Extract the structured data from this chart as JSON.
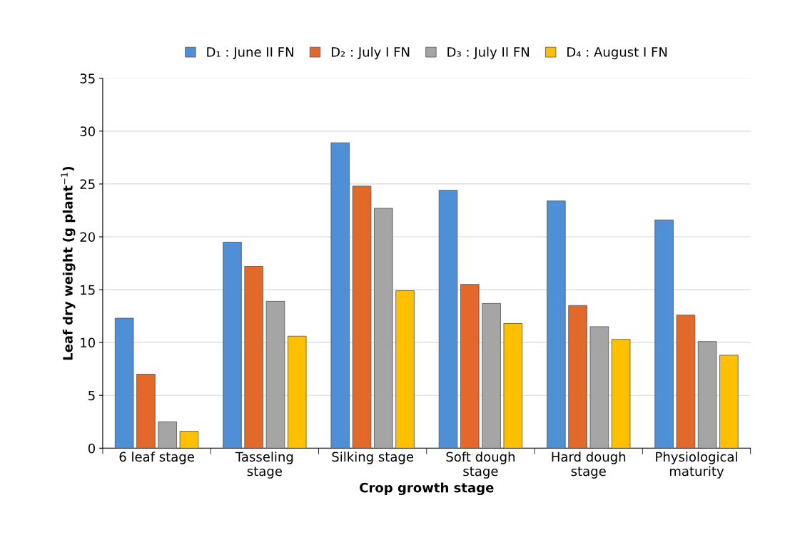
{
  "chart_data": {
    "type": "bar",
    "xlabel": "Crop growth stage",
    "ylabel": "Leaf dry weight (g plant$^{−1}$)",
    "categories": [
      "6 leaf stage",
      "Tasseling\nstage",
      "Silking stage",
      "Soft dough\nstage",
      "Hard dough\nstage",
      "Physiological\nmaturity"
    ],
    "series": [
      {
        "name": "D₁ : June II FN",
        "color": "#4f8fd6",
        "values": [
          12.3,
          19.5,
          28.9,
          24.4,
          23.4,
          21.6
        ]
      },
      {
        "name": "D₂ : July I FN",
        "color": "#e2692a",
        "values": [
          7.0,
          17.2,
          24.8,
          15.5,
          13.5,
          12.6
        ]
      },
      {
        "name": "D₃ : July II FN",
        "color": "#a5a5a5",
        "values": [
          2.5,
          13.9,
          22.7,
          13.7,
          11.5,
          10.1
        ]
      },
      {
        "name": "D₄ : August I FN",
        "color": "#ffc000",
        "values": [
          1.6,
          10.6,
          14.9,
          11.8,
          10.3,
          8.8
        ]
      }
    ],
    "ylim": [
      0,
      35
    ],
    "yticks": [
      0,
      5,
      10,
      15,
      20,
      25,
      30,
      35
    ],
    "grid": "y",
    "legend": "top"
  }
}
